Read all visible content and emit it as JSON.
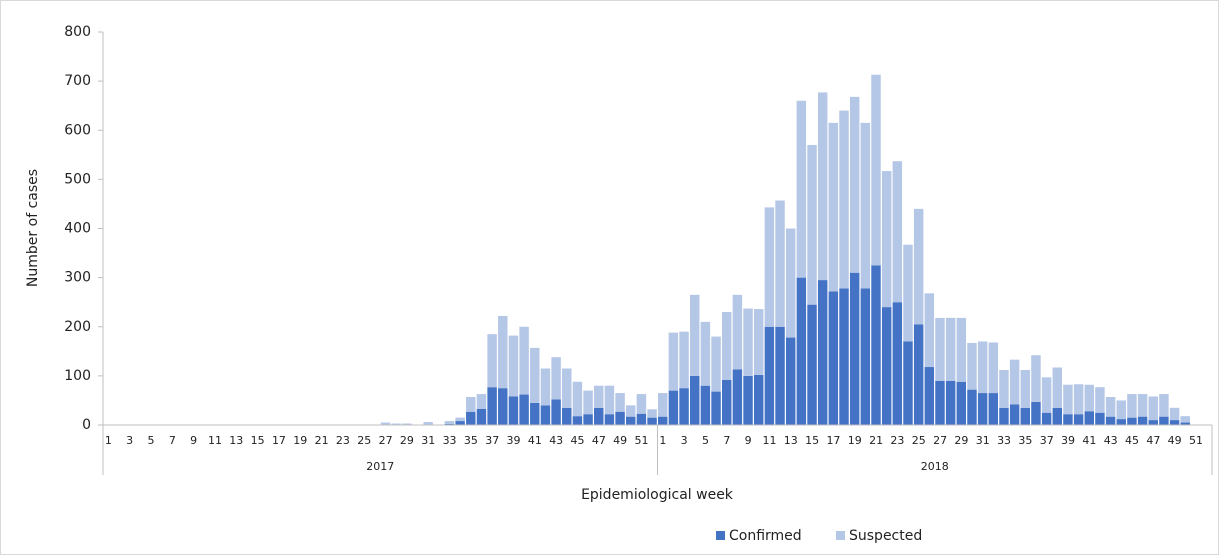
{
  "chart_data": {
    "type": "stacked-bar",
    "x_label": "Epidemiological week",
    "y_label": "Number of cases",
    "groups": [
      {
        "name": "2017",
        "categories": [
          "1",
          null,
          "3",
          null,
          "5",
          null,
          "7",
          null,
          "9",
          null,
          "11",
          null,
          "13",
          null,
          "15",
          null,
          "17",
          null,
          "19",
          null,
          "21",
          null,
          "23",
          null,
          "25",
          null,
          "27",
          null,
          "29",
          null,
          "31",
          null,
          "33",
          null,
          "35",
          null,
          "37",
          null,
          "39",
          null,
          "41",
          null,
          "43",
          null,
          "45",
          null,
          "47",
          null,
          "49",
          null,
          "51",
          null
        ]
      },
      {
        "name": "2018",
        "categories": [
          "1",
          null,
          "3",
          null,
          "5",
          null,
          "7",
          null,
          "9",
          null,
          "11",
          null,
          "13",
          null,
          "15",
          null,
          "17",
          null,
          "19",
          null,
          "21",
          null,
          "23",
          null,
          "25",
          null,
          "27",
          null,
          "29",
          null,
          "31",
          null,
          "33",
          null,
          "35",
          null,
          "37",
          null,
          "39",
          null,
          "41",
          null,
          "43",
          null,
          "45",
          null,
          "47",
          null,
          "49",
          null,
          "51",
          null
        ]
      }
    ],
    "series": [
      {
        "name": "Confirmed",
        "color": "#4472c4",
        "values": [
          0,
          0,
          0,
          0,
          0,
          0,
          0,
          0,
          0,
          0,
          0,
          0,
          0,
          0,
          0,
          0,
          0,
          0,
          0,
          0,
          0,
          0,
          0,
          0,
          0,
          0,
          0,
          0,
          0,
          0,
          0,
          0,
          2,
          8,
          27,
          33,
          77,
          75,
          58,
          62,
          45,
          40,
          52,
          35,
          18,
          22,
          35,
          22,
          27,
          17,
          23,
          15,
          17,
          70,
          75,
          100,
          80,
          68,
          92,
          113,
          100,
          102,
          200,
          200,
          178,
          300,
          245,
          295,
          272,
          278,
          310,
          278,
          325,
          240,
          250,
          170,
          205,
          118,
          90,
          90,
          88,
          72,
          65,
          65,
          35,
          42,
          35,
          47,
          25,
          35,
          22,
          22,
          28,
          25,
          17,
          12,
          15,
          17,
          10,
          17,
          10,
          5,
          0,
          0
        ]
      },
      {
        "name": "Suspected",
        "color": "#b4c7e7",
        "values": [
          0,
          0,
          0,
          0,
          0,
          0,
          0,
          0,
          0,
          0,
          0,
          0,
          0,
          0,
          0,
          0,
          0,
          0,
          0,
          0,
          0,
          0,
          0,
          0,
          0,
          0,
          5,
          3,
          3,
          0,
          6,
          0,
          6,
          7,
          30,
          30,
          108,
          147,
          124,
          138,
          112,
          75,
          86,
          80,
          70,
          48,
          45,
          58,
          38,
          23,
          40,
          17,
          48,
          118,
          115,
          165,
          130,
          112,
          138,
          152,
          137,
          134,
          243,
          257,
          222,
          360,
          325,
          382,
          343,
          362,
          358,
          337,
          388,
          277,
          287,
          197,
          235,
          150,
          128,
          128,
          130,
          95,
          105,
          103,
          77,
          91,
          77,
          95,
          72,
          82,
          60,
          61,
          54,
          52,
          40,
          38,
          48,
          46,
          48,
          46,
          25,
          13,
          0,
          0
        ]
      }
    ],
    "ylim": [
      0,
      800
    ],
    "yticks": [
      0,
      100,
      200,
      300,
      400,
      500,
      600,
      700,
      800
    ],
    "legend": "bottom"
  }
}
